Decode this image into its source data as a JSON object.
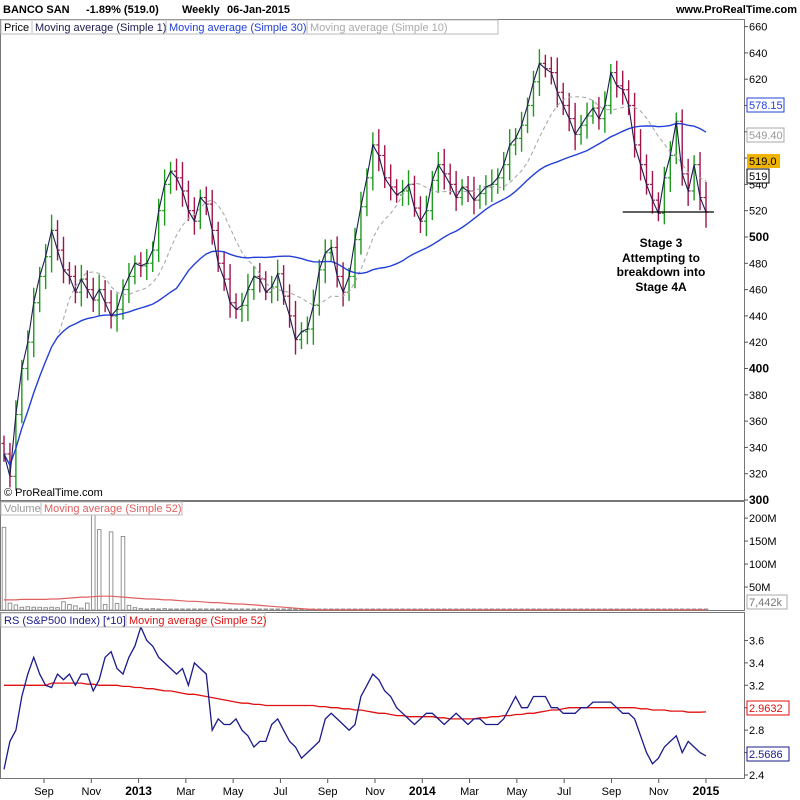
{
  "header": {
    "symbol": "BANCO SAN",
    "change": "-1.89% (519.0)",
    "period": "Weekly",
    "date": "06-Jan-2015",
    "site": "www.ProRealTime.com",
    "copyright": "© ProRealTime.com"
  },
  "colors": {
    "up_bar": "#1e9a1e",
    "down_bar": "#a0144a",
    "sma1": "#1c1c4e",
    "sma30": "#2340d8",
    "sma10": "#aaaaaa",
    "volume_bar": "#888888",
    "volume_ma": "#e06060",
    "rs_line": "#1a1a8c",
    "rs_ma": "#e01010",
    "price_badge": "#f0b400"
  },
  "chart_data": [
    {
      "type": "ohlc",
      "panel": "price",
      "legend": [
        "Price",
        "Moving average (Simple 1)",
        "Moving average (Simple 30)",
        "Moving average (Simple 10)"
      ],
      "ylim": [
        300,
        665
      ],
      "y_ticks": [
        300,
        320,
        340,
        360,
        380,
        400,
        420,
        440,
        460,
        480,
        500,
        520,
        540,
        560,
        580,
        600,
        620,
        640,
        660
      ],
      "y_ticks_bold": [
        300,
        400,
        500,
        600
      ],
      "x_labels": [
        "Sep",
        "Nov",
        "2013",
        "Mar",
        "May",
        "Jul",
        "Sep",
        "Nov",
        "2014",
        "Mar",
        "May",
        "Jul",
        "Sep",
        "Nov",
        "2015"
      ],
      "x_labels_bold": [
        "2013",
        "2014",
        "2015"
      ],
      "close": [
        335,
        318,
        365,
        400,
        420,
        450,
        470,
        485,
        505,
        490,
        475,
        470,
        458,
        468,
        460,
        452,
        460,
        450,
        440,
        445,
        460,
        470,
        480,
        478,
        480,
        490,
        520,
        540,
        550,
        545,
        535,
        520,
        512,
        530,
        525,
        505,
        480,
        468,
        450,
        445,
        448,
        460,
        470,
        468,
        458,
        462,
        472,
        455,
        440,
        422,
        428,
        430,
        448,
        475,
        488,
        492,
        470,
        458,
        470,
        498,
        523,
        545,
        570,
        562,
        545,
        538,
        532,
        535,
        540,
        522,
        512,
        520,
        543,
        555,
        548,
        540,
        530,
        538,
        535,
        528,
        533,
        538,
        540,
        545,
        555,
        570,
        575,
        585,
        600,
        618,
        632,
        628,
        625,
        610,
        600,
        590,
        578,
        585,
        592,
        598,
        590,
        600,
        625,
        615,
        612,
        600,
        570,
        555,
        540,
        528,
        518,
        545,
        562,
        588,
        548,
        535,
        555,
        530,
        519
      ],
      "sma1_label": "Moving average (Simple 1)",
      "sma10_label": "Moving average (Simple 10)",
      "sma30_label": "Moving average (Simple 30)",
      "sma30_last": "578.15",
      "sma10_last": "549.40",
      "last_price": "519.0",
      "support_level": "519",
      "support_line": 519,
      "annotation": [
        "Stage 3",
        "Attempting to",
        "breakdown into",
        "Stage 4A"
      ]
    },
    {
      "type": "bar",
      "panel": "volume",
      "legend": [
        "Volume",
        "Moving average (Simple 52)"
      ],
      "y_ticks": [
        "50M",
        "100M",
        "150M",
        "200M"
      ],
      "y_tick_values": [
        50,
        100,
        150,
        200
      ],
      "ylim": [
        0,
        222
      ],
      "unit": "M",
      "values": [
        180,
        15,
        11,
        6,
        7,
        6,
        6,
        5,
        6,
        5,
        18,
        12,
        9,
        4,
        15,
        222,
        175,
        12,
        170,
        14,
        160,
        10,
        5,
        3,
        2,
        3,
        2,
        3,
        2,
        2,
        1,
        0.5,
        0.5,
        0.5,
        0.5,
        0.5,
        0.5,
        0.5,
        0.5,
        0.5,
        0.5,
        0.5,
        0.5,
        0.5,
        0.5,
        0.5,
        0.5,
        0.5,
        0.5,
        0.5,
        0.5,
        0.5,
        0.5,
        0.5,
        0.5,
        0.5,
        0.5,
        0.5,
        0.5,
        0.5,
        0.5,
        0.5,
        0.5,
        0.5,
        0.5,
        0.5,
        0.5,
        0.5,
        0.5,
        0.5,
        0.5,
        0.5,
        0.5,
        0.5,
        0.5,
        0.5,
        0.5,
        0.5,
        0.5,
        0.5,
        0.5,
        0.5,
        0.5,
        0.5,
        0.5,
        0.5,
        0.5,
        0.5,
        0.5,
        0.5,
        0.5,
        0.5,
        0.5,
        0.5,
        0.5,
        0.5,
        0.5,
        0.5,
        0.5,
        0.5,
        0.5,
        0.5,
        0.5,
        0.5,
        0.5,
        0.5,
        0.5,
        0.5,
        0.5,
        0.5,
        0.5,
        0.5,
        0.5,
        0.5,
        0.5,
        0.5,
        0.5,
        0.5,
        0.5
      ],
      "ma52": [
        22,
        22,
        22,
        23,
        23,
        23,
        23,
        23,
        24,
        24,
        25,
        26,
        27,
        28,
        28,
        29,
        30,
        30,
        30,
        29,
        28,
        27,
        26,
        25,
        24,
        24,
        23,
        22,
        22,
        21,
        20,
        19,
        19,
        18,
        17,
        16,
        16,
        15,
        14,
        13,
        13,
        12,
        11,
        10,
        9,
        8,
        7,
        6,
        5,
        4,
        3,
        2,
        1,
        0.5,
        0.5,
        0.5,
        0.5,
        0.5,
        0.5,
        0.5,
        0.5,
        0.5,
        0.5,
        0.5,
        0.5,
        0.5,
        0.5,
        0.5,
        0.5,
        0.5,
        0.5,
        0.5,
        0.5,
        0.5,
        0.5,
        0.5,
        0.5,
        0.5,
        0.5,
        0.5,
        0.5,
        0.5,
        0.5,
        0.5,
        0.5,
        0.5,
        0.5,
        0.5,
        0.5,
        0.5,
        0.5,
        0.5,
        0.5,
        0.5,
        0.5,
        0.5,
        0.5,
        0.5,
        0.5,
        0.5,
        0.5,
        0.5,
        0.5,
        0.5,
        0.5,
        0.5,
        0.5,
        0.5,
        0.5,
        0.5,
        0.5,
        0.5,
        0.5,
        0.5,
        0.5,
        0.5,
        0.5,
        0.5,
        0.5
      ],
      "last_value": "7,442k"
    },
    {
      "type": "line",
      "panel": "relative_strength",
      "legend": [
        "RS (S&P500 Index) [*10]",
        "Moving average (Simple 52)"
      ],
      "ylim": [
        2.4,
        3.72
      ],
      "y_ticks": [
        2.4,
        2.6,
        2.8,
        3.0,
        3.2,
        3.4,
        3.6
      ],
      "y_tick_labels": [
        "2.4",
        "2.6",
        "2.8",
        "3",
        "3.2",
        "3.4",
        "3.6"
      ],
      "rs": [
        2.45,
        2.7,
        2.8,
        3.1,
        3.3,
        3.45,
        3.3,
        3.2,
        3.18,
        3.3,
        3.25,
        3.3,
        3.2,
        3.3,
        3.3,
        3.15,
        3.25,
        3.45,
        3.5,
        3.35,
        3.3,
        3.45,
        3.55,
        3.72,
        3.6,
        3.55,
        3.45,
        3.4,
        3.35,
        3.3,
        3.35,
        3.2,
        3.4,
        3.35,
        3.3,
        2.8,
        2.9,
        2.85,
        2.85,
        2.9,
        2.8,
        2.75,
        2.65,
        2.7,
        2.7,
        2.85,
        2.9,
        2.8,
        2.7,
        2.65,
        2.55,
        2.6,
        2.65,
        2.7,
        2.9,
        2.95,
        2.9,
        2.85,
        2.8,
        2.85,
        3.1,
        3.2,
        3.3,
        3.25,
        3.15,
        3.1,
        3.0,
        2.95,
        2.9,
        2.85,
        2.9,
        2.95,
        2.95,
        2.9,
        2.85,
        2.9,
        2.95,
        2.9,
        2.85,
        2.9,
        2.9,
        2.85,
        2.85,
        2.85,
        2.9,
        3.0,
        3.1,
        3.0,
        3.0,
        3.1,
        3.1,
        3.1,
        3.0,
        3.0,
        2.95,
        2.95,
        2.95,
        3.0,
        3.0,
        3.05,
        3.05,
        3.05,
        3.05,
        3.0,
        2.95,
        2.95,
        2.9,
        2.75,
        2.6,
        2.5,
        2.55,
        2.65,
        2.7,
        2.75,
        2.6,
        2.7,
        2.65,
        2.6,
        2.57
      ],
      "rs_ma52": [
        3.2,
        3.2,
        3.2,
        3.2,
        3.2,
        3.2,
        3.2,
        3.2,
        3.22,
        3.22,
        3.22,
        3.22,
        3.22,
        3.22,
        3.21,
        3.21,
        3.2,
        3.2,
        3.2,
        3.2,
        3.19,
        3.19,
        3.18,
        3.18,
        3.17,
        3.17,
        3.16,
        3.15,
        3.15,
        3.14,
        3.13,
        3.12,
        3.12,
        3.11,
        3.1,
        3.09,
        3.08,
        3.07,
        3.06,
        3.05,
        3.04,
        3.04,
        3.03,
        3.03,
        3.02,
        3.02,
        3.02,
        3.02,
        3.02,
        3.02,
        3.02,
        3.02,
        3.02,
        3.01,
        3.01,
        3.0,
        3.0,
        2.99,
        2.99,
        2.98,
        2.98,
        2.97,
        2.96,
        2.95,
        2.95,
        2.94,
        2.93,
        2.93,
        2.92,
        2.92,
        2.92,
        2.92,
        2.92,
        2.91,
        2.91,
        2.9,
        2.9,
        2.9,
        2.9,
        2.9,
        2.91,
        2.91,
        2.92,
        2.92,
        2.93,
        2.93,
        2.94,
        2.94,
        2.95,
        2.95,
        2.96,
        2.97,
        2.98,
        2.98,
        2.99,
        3.0,
        3.0,
        3.0,
        3.0,
        3.0,
        3.0,
        3.0,
        3.0,
        3.0,
        3.0,
        3.0,
        3.0,
        2.99,
        2.99,
        2.98,
        2.98,
        2.98,
        2.97,
        2.97,
        2.97,
        2.96,
        2.96,
        2.96,
        2.9632
      ],
      "rs_ma_last": "2.9632",
      "rs_last": "2.5686"
    }
  ]
}
